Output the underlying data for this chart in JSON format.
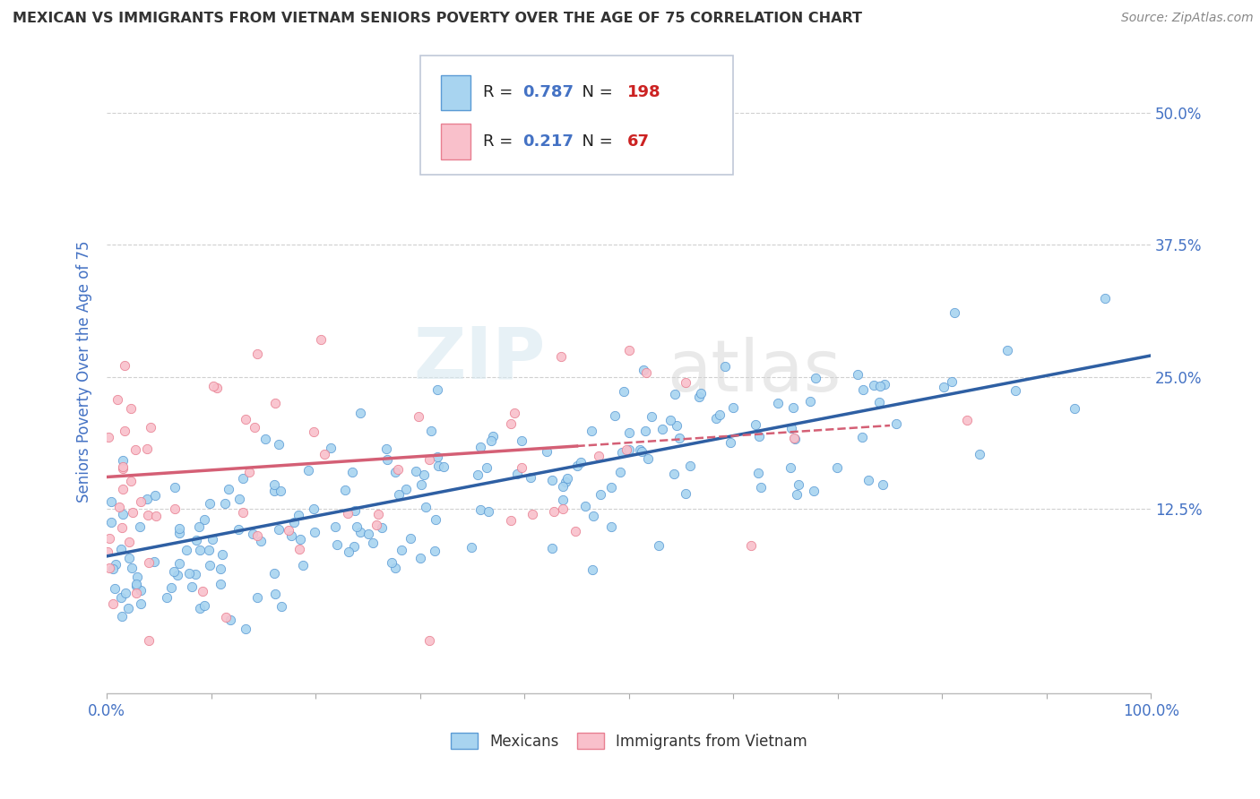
{
  "title": "MEXICAN VS IMMIGRANTS FROM VIETNAM SENIORS POVERTY OVER THE AGE OF 75 CORRELATION CHART",
  "source": "Source: ZipAtlas.com",
  "ylabel": "Seniors Poverty Over the Age of 75",
  "xlim": [
    0,
    1.0
  ],
  "ylim": [
    -0.05,
    0.56
  ],
  "xticks": [
    0.0,
    0.1,
    0.2,
    0.3,
    0.4,
    0.5,
    0.6,
    0.7,
    0.8,
    0.9,
    1.0
  ],
  "xticklabels": [
    "0.0%",
    "",
    "",
    "",
    "",
    "",
    "",
    "",
    "",
    "",
    "100.0%"
  ],
  "ytick_values": [
    0.125,
    0.25,
    0.375,
    0.5
  ],
  "ytick_labels": [
    "12.5%",
    "25.0%",
    "37.5%",
    "50.0%"
  ],
  "mexican_R": 0.787,
  "mexican_N": 198,
  "vietnam_R": 0.217,
  "vietnam_N": 67,
  "mexican_color": "#a8d4f0",
  "vietnam_color": "#f9c0cb",
  "mexican_edge_color": "#5b9bd5",
  "vietnam_edge_color": "#e87f91",
  "mexican_line_color": "#2e5fa3",
  "vietnam_line_color": "#d45f75",
  "watermark_zip": "ZIP",
  "watermark_atlas": "atlas",
  "background_color": "#ffffff",
  "grid_color": "#d0d0d0",
  "title_color": "#333333",
  "source_color": "#888888",
  "axis_label_color": "#4472c4",
  "tick_label_color": "#4472c4",
  "legend_text_color": "#333333",
  "legend_value_color": "#4472c4",
  "mexican_line_slope": 0.19,
  "mexican_line_intercept": 0.08,
  "vietnam_line_slope": 0.065,
  "vietnam_line_intercept": 0.155,
  "vietnam_line_xmax": 0.45
}
